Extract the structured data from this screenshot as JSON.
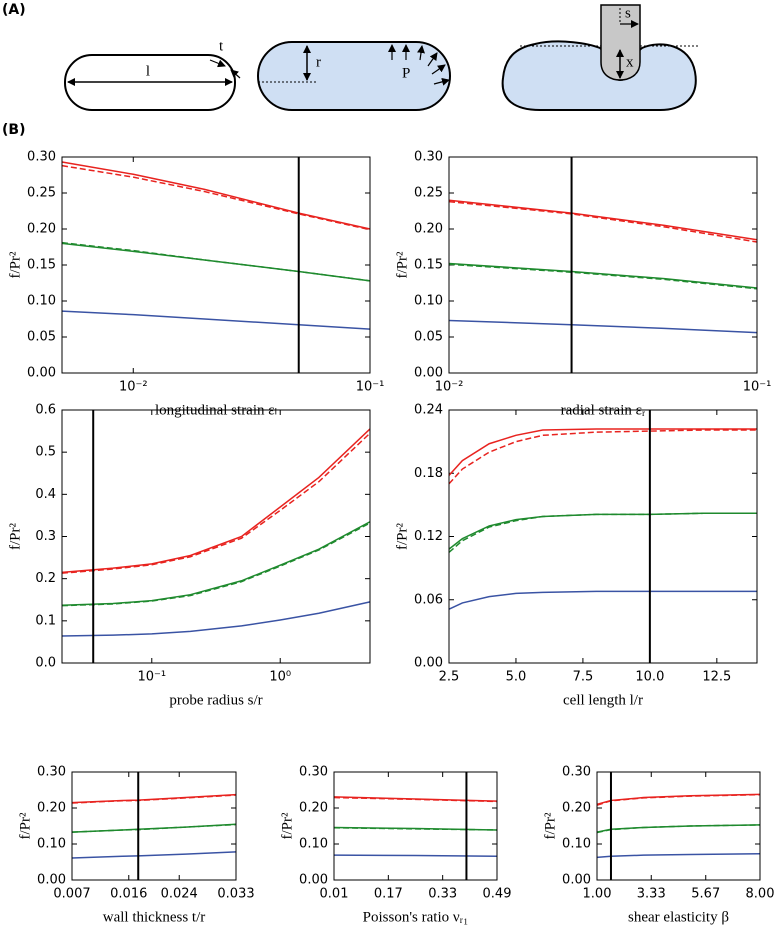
{
  "diagram": {
    "panel_a": "(A)",
    "panel_b": "(B)",
    "labels": [
      "l",
      "t",
      "r",
      "P",
      "s",
      "x"
    ]
  },
  "chart_data": [
    {
      "type": "line",
      "xlabel": "longitudinal strain εₗ",
      "ylabel": "f/Pr²",
      "xlog": true,
      "xlim": [
        0.005,
        0.1
      ],
      "xticks": [
        {
          "value": 0.01,
          "label": "10⁻²"
        },
        {
          "value": 0.1,
          "label": "10⁻¹"
        }
      ],
      "ylim": [
        0,
        0.3
      ],
      "yticks": [
        {
          "value": 0,
          "label": "0.00"
        },
        {
          "value": 0.05,
          "label": "0.05"
        },
        {
          "value": 0.1,
          "label": "0.10"
        },
        {
          "value": 0.15,
          "label": "0.15"
        },
        {
          "value": 0.2,
          "label": "0.20"
        },
        {
          "value": 0.25,
          "label": "0.25"
        },
        {
          "value": 0.3,
          "label": "0.30"
        }
      ],
      "vline": 0.05,
      "x": [
        0.005,
        0.01,
        0.02,
        0.05,
        0.1
      ],
      "series": [
        {
          "color": "#e8231f",
          "dash": false,
          "values": [
            0.293,
            0.276,
            0.255,
            0.222,
            0.2
          ]
        },
        {
          "color": "#e8231f",
          "dash": true,
          "values": [
            0.288,
            0.272,
            0.252,
            0.221,
            0.199
          ]
        },
        {
          "color": "#1f8a2e",
          "dash": false,
          "values": [
            0.18,
            0.169,
            0.157,
            0.141,
            0.128
          ]
        },
        {
          "color": "#1f8a2e",
          "dash": true,
          "values": [
            0.181,
            0.17,
            0.157,
            0.141,
            0.128
          ]
        },
        {
          "color": "#3a53a4",
          "dash": false,
          "values": [
            0.086,
            0.081,
            0.075,
            0.067,
            0.061
          ]
        }
      ]
    },
    {
      "type": "line",
      "xlabel": "radial strain εᵣ",
      "ylabel": "f/Pr²",
      "xlog": true,
      "xlim": [
        0.01,
        0.1
      ],
      "xticks": [
        {
          "value": 0.01,
          "label": "10⁻²"
        },
        {
          "value": 0.1,
          "label": "10⁻¹"
        }
      ],
      "ylim": [
        0,
        0.3
      ],
      "yticks": [
        {
          "value": 0,
          "label": "0.00"
        },
        {
          "value": 0.05,
          "label": "0.05"
        },
        {
          "value": 0.1,
          "label": "0.10"
        },
        {
          "value": 0.15,
          "label": "0.15"
        },
        {
          "value": 0.2,
          "label": "0.20"
        },
        {
          "value": 0.25,
          "label": "0.25"
        },
        {
          "value": 0.3,
          "label": "0.30"
        }
      ],
      "vline": 0.025,
      "x": [
        0.01,
        0.025,
        0.05,
        0.1
      ],
      "series": [
        {
          "color": "#e8231f",
          "dash": false,
          "values": [
            0.24,
            0.222,
            0.205,
            0.185
          ]
        },
        {
          "color": "#e8231f",
          "dash": true,
          "values": [
            0.238,
            0.221,
            0.203,
            0.182
          ]
        },
        {
          "color": "#1f8a2e",
          "dash": false,
          "values": [
            0.152,
            0.141,
            0.131,
            0.118
          ]
        },
        {
          "color": "#1f8a2e",
          "dash": true,
          "values": [
            0.151,
            0.14,
            0.13,
            0.117
          ]
        },
        {
          "color": "#3a53a4",
          "dash": false,
          "values": [
            0.073,
            0.067,
            0.062,
            0.056
          ]
        }
      ]
    },
    {
      "type": "line",
      "xlabel": "probe radius s/r",
      "ylabel": "f/Pr²",
      "xlog": true,
      "xlim": [
        0.02,
        5
      ],
      "xticks": [
        {
          "value": 0.1,
          "label": "10⁻¹"
        },
        {
          "value": 1,
          "label": "10⁰"
        }
      ],
      "ylim": [
        0,
        0.6
      ],
      "yticks": [
        {
          "value": 0,
          "label": "0.0"
        },
        0.1,
        0.2,
        0.3,
        0.4,
        0.5,
        0.6
      ],
      "vline": 0.035,
      "x": [
        0.02,
        0.05,
        0.1,
        0.2,
        0.5,
        1,
        2,
        5
      ],
      "series": [
        {
          "color": "#e8231f",
          "dash": false,
          "values": [
            0.215,
            0.225,
            0.235,
            0.255,
            0.3,
            0.37,
            0.44,
            0.555
          ]
        },
        {
          "color": "#e8231f",
          "dash": true,
          "values": [
            0.213,
            0.223,
            0.233,
            0.252,
            0.296,
            0.362,
            0.43,
            0.545
          ]
        },
        {
          "color": "#1f8a2e",
          "dash": false,
          "values": [
            0.137,
            0.141,
            0.148,
            0.162,
            0.195,
            0.232,
            0.27,
            0.335
          ]
        },
        {
          "color": "#1f8a2e",
          "dash": true,
          "values": [
            0.136,
            0.14,
            0.147,
            0.16,
            0.193,
            0.23,
            0.268,
            0.332
          ]
        },
        {
          "color": "#3a53a4",
          "dash": false,
          "values": [
            0.064,
            0.066,
            0.069,
            0.075,
            0.088,
            0.102,
            0.118,
            0.145
          ]
        }
      ]
    },
    {
      "type": "line",
      "xlabel": "cell length l/r",
      "ylabel": "f/Pr²",
      "xlog": false,
      "xlim": [
        2.5,
        14
      ],
      "xticks": [
        2.5,
        {
          "value": 5,
          "label": "5.0"
        },
        7.5,
        {
          "value": 10,
          "label": "10.0"
        },
        12.5
      ],
      "ylim": [
        0,
        0.24
      ],
      "yticks": [
        {
          "value": 0,
          "label": "0.00"
        },
        {
          "value": 0.06,
          "label": "0.06"
        },
        {
          "value": 0.12,
          "label": "0.12"
        },
        {
          "value": 0.18,
          "label": "0.18"
        },
        {
          "value": 0.24,
          "label": "0.24"
        }
      ],
      "vline": 10,
      "x": [
        2.5,
        3,
        4,
        5,
        6,
        8,
        10,
        12,
        14
      ],
      "series": [
        {
          "color": "#e8231f",
          "dash": false,
          "values": [
            0.178,
            0.192,
            0.208,
            0.216,
            0.221,
            0.222,
            0.222,
            0.222,
            0.222
          ]
        },
        {
          "color": "#e8231f",
          "dash": true,
          "values": [
            0.17,
            0.184,
            0.2,
            0.21,
            0.216,
            0.219,
            0.22,
            0.221,
            0.221
          ]
        },
        {
          "color": "#1f8a2e",
          "dash": false,
          "values": [
            0.108,
            0.118,
            0.13,
            0.136,
            0.139,
            0.141,
            0.141,
            0.142,
            0.142
          ]
        },
        {
          "color": "#1f8a2e",
          "dash": true,
          "values": [
            0.105,
            0.116,
            0.129,
            0.135,
            0.139,
            0.141,
            0.141,
            0.142,
            0.142
          ]
        },
        {
          "color": "#3a53a4",
          "dash": false,
          "values": [
            0.051,
            0.057,
            0.063,
            0.066,
            0.067,
            0.068,
            0.068,
            0.068,
            0.068
          ]
        }
      ]
    },
    {
      "type": "line",
      "xlabel": "wall thickness t/r",
      "ylabel": "f/Pr²",
      "xlog": false,
      "xlim": [
        0.007,
        0.033
      ],
      "xticks": [
        0.007,
        0.016,
        0.024,
        0.033
      ],
      "ylim": [
        0,
        0.3
      ],
      "yticks": [
        {
          "value": 0,
          "label": "0.00"
        },
        {
          "value": 0.1,
          "label": "0.10"
        },
        {
          "value": 0.2,
          "label": "0.20"
        },
        {
          "value": 0.3,
          "label": "0.30"
        }
      ],
      "vline": 0.0175,
      "x": [
        0.007,
        0.015,
        0.0175,
        0.025,
        0.033
      ],
      "series": [
        {
          "color": "#e8231f",
          "dash": false,
          "values": [
            0.215,
            0.221,
            0.222,
            0.229,
            0.237
          ]
        },
        {
          "color": "#e8231f",
          "dash": true,
          "values": [
            0.214,
            0.22,
            0.221,
            0.228,
            0.236
          ]
        },
        {
          "color": "#1f8a2e",
          "dash": false,
          "values": [
            0.133,
            0.139,
            0.141,
            0.147,
            0.155
          ]
        },
        {
          "color": "#1f8a2e",
          "dash": true,
          "values": [
            0.133,
            0.139,
            0.14,
            0.147,
            0.154
          ]
        },
        {
          "color": "#3a53a4",
          "dash": false,
          "values": [
            0.061,
            0.066,
            0.067,
            0.072,
            0.078
          ]
        }
      ]
    },
    {
      "type": "line",
      "xlabel": "Poisson's ratio νᵣ₁",
      "ylabel": "f/Pr²",
      "xlog": false,
      "xlim": [
        0.01,
        0.49
      ],
      "xticks": [
        0.01,
        0.17,
        0.33,
        0.49
      ],
      "ylim": [
        0,
        0.3
      ],
      "yticks": [
        {
          "value": 0,
          "label": "0.00"
        },
        {
          "value": 0.1,
          "label": "0.10"
        },
        {
          "value": 0.2,
          "label": "0.20"
        },
        {
          "value": 0.3,
          "label": "0.30"
        }
      ],
      "vline": 0.4,
      "x": [
        0.01,
        0.25,
        0.49
      ],
      "series": [
        {
          "color": "#e8231f",
          "dash": false,
          "values": [
            0.231,
            0.225,
            0.219
          ]
        },
        {
          "color": "#e8231f",
          "dash": true,
          "values": [
            0.229,
            0.224,
            0.218
          ]
        },
        {
          "color": "#1f8a2e",
          "dash": false,
          "values": [
            0.146,
            0.143,
            0.139
          ]
        },
        {
          "color": "#1f8a2e",
          "dash": true,
          "values": [
            0.145,
            0.142,
            0.139
          ]
        },
        {
          "color": "#3a53a4",
          "dash": false,
          "values": [
            0.069,
            0.068,
            0.066
          ]
        }
      ]
    },
    {
      "type": "line",
      "xlabel": "shear elasticity β",
      "ylabel": "f/Pr²",
      "xlog": false,
      "xlim": [
        1,
        8
      ],
      "xticks": [
        {
          "value": 1,
          "label": "1.00"
        },
        3.33,
        5.67,
        {
          "value": 8,
          "label": "8.00"
        }
      ],
      "ylim": [
        0,
        0.3
      ],
      "yticks": [
        {
          "value": 0,
          "label": "0.00"
        },
        {
          "value": 0.1,
          "label": "0.10"
        },
        {
          "value": 0.2,
          "label": "0.20"
        },
        {
          "value": 0.3,
          "label": "0.30"
        }
      ],
      "vline": 1.6,
      "x": [
        1,
        1.6,
        3,
        5,
        8
      ],
      "series": [
        {
          "color": "#e8231f",
          "dash": false,
          "values": [
            0.21,
            0.221,
            0.229,
            0.234,
            0.238
          ]
        },
        {
          "color": "#e8231f",
          "dash": true,
          "values": [
            0.208,
            0.22,
            0.228,
            0.233,
            0.237
          ]
        },
        {
          "color": "#1f8a2e",
          "dash": false,
          "values": [
            0.133,
            0.141,
            0.146,
            0.15,
            0.153
          ]
        },
        {
          "color": "#1f8a2e",
          "dash": true,
          "values": [
            0.132,
            0.14,
            0.146,
            0.15,
            0.153
          ]
        },
        {
          "color": "#3a53a4",
          "dash": false,
          "values": [
            0.063,
            0.066,
            0.069,
            0.071,
            0.073
          ]
        }
      ]
    }
  ]
}
